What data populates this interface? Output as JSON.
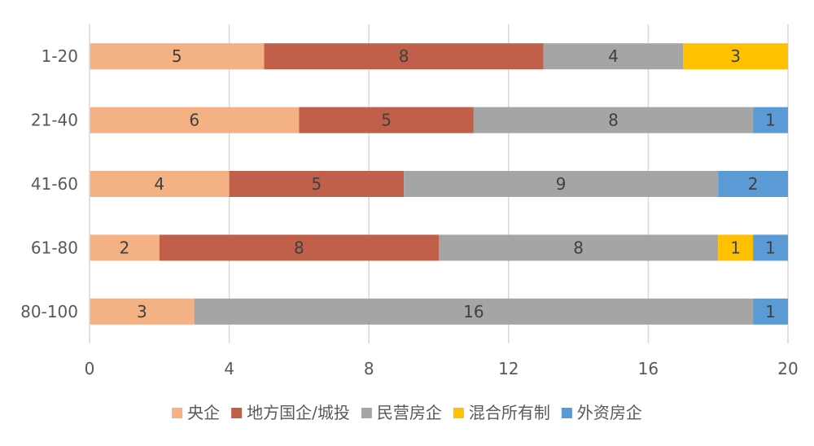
{
  "chart_data": {
    "type": "bar",
    "orientation": "horizontal",
    "stacked": true,
    "categories": [
      "1-20",
      "21-40",
      "41-60",
      "61-80",
      "80-100"
    ],
    "series": [
      {
        "name": "央企",
        "color": "#F4B183",
        "values": [
          5,
          6,
          4,
          2,
          3
        ]
      },
      {
        "name": "地方国企/城投",
        "color": "#C0604A",
        "values": [
          8,
          5,
          5,
          8,
          0
        ]
      },
      {
        "name": "民营房企",
        "color": "#A5A5A5",
        "values": [
          4,
          8,
          9,
          8,
          16
        ]
      },
      {
        "name": "混合所有制",
        "color": "#FFC000",
        "values": [
          3,
          0,
          0,
          1,
          0
        ]
      },
      {
        "name": "外资房企",
        "color": "#5B9BD5",
        "values": [
          0,
          1,
          2,
          1,
          1
        ]
      }
    ],
    "xlim": [
      0,
      20
    ],
    "xticks": [
      0,
      4,
      8,
      12,
      16,
      20
    ],
    "grid": true,
    "legend_position": "bottom"
  }
}
